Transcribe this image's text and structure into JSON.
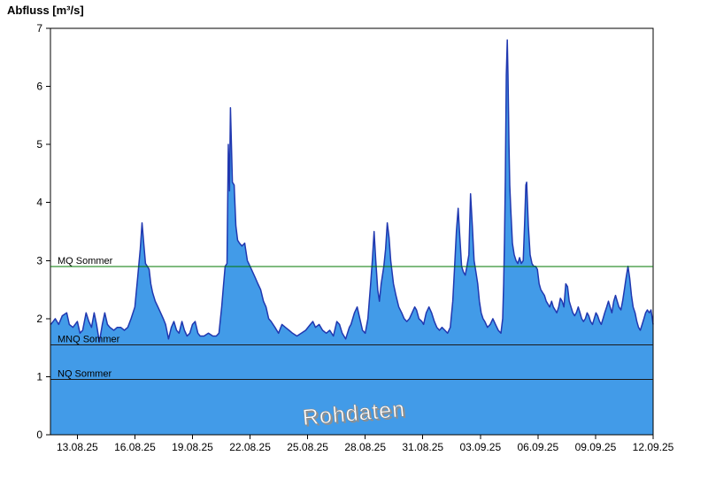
{
  "title": "Abfluss [m³/s]",
  "watermark": {
    "text": "Rohdaten"
  },
  "chart_data": {
    "type": "area",
    "title": "Abfluss [m³/s]",
    "xlabel": "",
    "ylabel": "Abfluss [m³/s]",
    "x_unit": "days since 13.08.25",
    "x_range": [
      -1.4,
      30
    ],
    "y_range": [
      0,
      7
    ],
    "grid": false,
    "legend": "none",
    "y_ticks": [
      0,
      1,
      2,
      3,
      4,
      5,
      6,
      7
    ],
    "x_ticks": [
      {
        "t": 0,
        "label": "13.08.25"
      },
      {
        "t": 3,
        "label": "16.08.25"
      },
      {
        "t": 6,
        "label": "19.08.25"
      },
      {
        "t": 9,
        "label": "22.08.25"
      },
      {
        "t": 12,
        "label": "25.08.25"
      },
      {
        "t": 15,
        "label": "28.08.25"
      },
      {
        "t": 18,
        "label": "31.08.25"
      },
      {
        "t": 21,
        "label": "03.09.25"
      },
      {
        "t": 24,
        "label": "06.09.25"
      },
      {
        "t": 27,
        "label": "09.09.25"
      },
      {
        "t": 30,
        "label": "12.09.25"
      }
    ],
    "colors": {
      "area_fill": "#429be8",
      "line": "#2038b0",
      "axis": "#000000",
      "mq_green": "#007700",
      "ref_dark": "#1a1a1a"
    },
    "ref_lines": [
      {
        "id": "mq-sommer",
        "name": "MQ Sommer",
        "value": 2.9,
        "color": "#007700"
      },
      {
        "id": "mnq-sommer",
        "name": "MNQ Sommer",
        "value": 1.55,
        "color": "#1a1a1a"
      },
      {
        "id": "nq-sommer",
        "name": "NQ Sommer",
        "value": 0.95,
        "color": "#1a1a1a"
      }
    ],
    "series": [
      {
        "name": "Rohdaten",
        "points": [
          [
            -1.38,
            1.9
          ],
          [
            -1.15,
            2.0
          ],
          [
            -0.97,
            1.9
          ],
          [
            -0.78,
            2.05
          ],
          [
            -0.55,
            2.1
          ],
          [
            -0.42,
            1.9
          ],
          [
            -0.23,
            1.85
          ],
          [
            0,
            1.95
          ],
          [
            0.14,
            1.75
          ],
          [
            0.28,
            1.8
          ],
          [
            0.46,
            2.1
          ],
          [
            0.6,
            1.95
          ],
          [
            0.74,
            1.85
          ],
          [
            0.88,
            2.1
          ],
          [
            1.0,
            1.9
          ],
          [
            1.15,
            1.6
          ],
          [
            1.3,
            1.9
          ],
          [
            1.43,
            2.1
          ],
          [
            1.57,
            1.9
          ],
          [
            1.7,
            1.85
          ],
          [
            1.9,
            1.8
          ],
          [
            2.08,
            1.85
          ],
          [
            2.26,
            1.85
          ],
          [
            2.45,
            1.8
          ],
          [
            2.63,
            1.85
          ],
          [
            2.8,
            2.0
          ],
          [
            3.0,
            2.2
          ],
          [
            3.14,
            2.7
          ],
          [
            3.28,
            3.2
          ],
          [
            3.37,
            3.65
          ],
          [
            3.46,
            3.3
          ],
          [
            3.55,
            2.95
          ],
          [
            3.65,
            2.9
          ],
          [
            3.74,
            2.85
          ],
          [
            3.83,
            2.6
          ],
          [
            3.92,
            2.45
          ],
          [
            4.06,
            2.3
          ],
          [
            4.2,
            2.2
          ],
          [
            4.34,
            2.1
          ],
          [
            4.48,
            2.0
          ],
          [
            4.6,
            1.9
          ],
          [
            4.75,
            1.65
          ],
          [
            4.9,
            1.85
          ],
          [
            5.03,
            1.95
          ],
          [
            5.17,
            1.8
          ],
          [
            5.3,
            1.75
          ],
          [
            5.45,
            1.95
          ],
          [
            5.58,
            1.8
          ],
          [
            5.72,
            1.7
          ],
          [
            5.86,
            1.75
          ],
          [
            6.0,
            1.9
          ],
          [
            6.14,
            1.95
          ],
          [
            6.28,
            1.75
          ],
          [
            6.4,
            1.7
          ],
          [
            6.6,
            1.7
          ],
          [
            6.83,
            1.75
          ],
          [
            7.06,
            1.7
          ],
          [
            7.24,
            1.7
          ],
          [
            7.38,
            1.75
          ],
          [
            7.52,
            2.2
          ],
          [
            7.61,
            2.55
          ],
          [
            7.7,
            2.9
          ],
          [
            7.8,
            2.95
          ],
          [
            7.87,
            5.0
          ],
          [
            7.93,
            4.2
          ],
          [
            7.98,
            5.63
          ],
          [
            8.08,
            4.35
          ],
          [
            8.17,
            4.3
          ],
          [
            8.26,
            3.6
          ],
          [
            8.35,
            3.35
          ],
          [
            8.45,
            3.3
          ],
          [
            8.58,
            3.25
          ],
          [
            8.72,
            3.3
          ],
          [
            8.86,
            3.0
          ],
          [
            9.0,
            2.9
          ],
          [
            9.14,
            2.8
          ],
          [
            9.28,
            2.7
          ],
          [
            9.41,
            2.6
          ],
          [
            9.55,
            2.5
          ],
          [
            9.7,
            2.3
          ],
          [
            9.83,
            2.2
          ],
          [
            9.97,
            2.0
          ],
          [
            10.1,
            1.95
          ],
          [
            10.3,
            1.85
          ],
          [
            10.48,
            1.75
          ],
          [
            10.66,
            1.9
          ],
          [
            10.84,
            1.85
          ],
          [
            11.03,
            1.8
          ],
          [
            11.21,
            1.75
          ],
          [
            11.44,
            1.7
          ],
          [
            11.67,
            1.75
          ],
          [
            11.9,
            1.8
          ],
          [
            12.14,
            1.9
          ],
          [
            12.27,
            1.95
          ],
          [
            12.41,
            1.85
          ],
          [
            12.6,
            1.9
          ],
          [
            12.78,
            1.8
          ],
          [
            12.97,
            1.75
          ],
          [
            13.15,
            1.8
          ],
          [
            13.34,
            1.7
          ],
          [
            13.52,
            1.95
          ],
          [
            13.66,
            1.9
          ],
          [
            13.8,
            1.75
          ],
          [
            13.98,
            1.65
          ],
          [
            14.17,
            1.85
          ],
          [
            14.26,
            1.9
          ],
          [
            14.44,
            2.1
          ],
          [
            14.58,
            2.2
          ],
          [
            14.72,
            2.0
          ],
          [
            14.86,
            1.8
          ],
          [
            15.0,
            1.75
          ],
          [
            15.14,
            2.0
          ],
          [
            15.28,
            2.6
          ],
          [
            15.37,
            3.0
          ],
          [
            15.46,
            3.5
          ],
          [
            15.55,
            3.0
          ],
          [
            15.65,
            2.5
          ],
          [
            15.74,
            2.3
          ],
          [
            15.83,
            2.6
          ],
          [
            15.97,
            2.9
          ],
          [
            16.06,
            3.2
          ],
          [
            16.15,
            3.65
          ],
          [
            16.24,
            3.4
          ],
          [
            16.33,
            3.0
          ],
          [
            16.47,
            2.6
          ],
          [
            16.6,
            2.4
          ],
          [
            16.75,
            2.2
          ],
          [
            16.9,
            2.1
          ],
          [
            17.03,
            2.0
          ],
          [
            17.17,
            1.95
          ],
          [
            17.3,
            2.0
          ],
          [
            17.44,
            2.1
          ],
          [
            17.58,
            2.2
          ],
          [
            17.67,
            2.15
          ],
          [
            17.8,
            2.0
          ],
          [
            17.95,
            1.95
          ],
          [
            18.04,
            1.9
          ],
          [
            18.18,
            2.1
          ],
          [
            18.32,
            2.2
          ],
          [
            18.46,
            2.1
          ],
          [
            18.6,
            1.95
          ],
          [
            18.73,
            1.85
          ],
          [
            18.87,
            1.8
          ],
          [
            19.0,
            1.85
          ],
          [
            19.15,
            1.8
          ],
          [
            19.29,
            1.75
          ],
          [
            19.43,
            1.85
          ],
          [
            19.56,
            2.3
          ],
          [
            19.66,
            2.9
          ],
          [
            19.75,
            3.5
          ],
          [
            19.84,
            3.9
          ],
          [
            19.93,
            3.4
          ],
          [
            20.02,
            2.9
          ],
          [
            20.12,
            2.8
          ],
          [
            20.21,
            2.75
          ],
          [
            20.3,
            2.9
          ],
          [
            20.4,
            3.1
          ],
          [
            20.49,
            4.15
          ],
          [
            20.58,
            3.6
          ],
          [
            20.67,
            3.0
          ],
          [
            20.77,
            2.8
          ],
          [
            20.86,
            2.6
          ],
          [
            20.95,
            2.3
          ],
          [
            21.04,
            2.1
          ],
          [
            21.14,
            2.0
          ],
          [
            21.23,
            1.95
          ],
          [
            21.37,
            1.85
          ],
          [
            21.51,
            1.9
          ],
          [
            21.65,
            2.0
          ],
          [
            21.79,
            1.9
          ],
          [
            21.93,
            1.8
          ],
          [
            22.07,
            1.75
          ],
          [
            22.16,
            2.0
          ],
          [
            22.21,
            2.6
          ],
          [
            22.26,
            3.4
          ],
          [
            22.3,
            4.4
          ],
          [
            22.35,
            6.2
          ],
          [
            22.4,
            6.8
          ],
          [
            22.44,
            6.2
          ],
          [
            22.49,
            5.0
          ],
          [
            22.53,
            4.3
          ],
          [
            22.58,
            3.9
          ],
          [
            22.67,
            3.3
          ],
          [
            22.76,
            3.1
          ],
          [
            22.86,
            3.0
          ],
          [
            22.95,
            2.95
          ],
          [
            23.04,
            3.05
          ],
          [
            23.13,
            2.95
          ],
          [
            23.23,
            3.0
          ],
          [
            23.3,
            3.6
          ],
          [
            23.37,
            4.3
          ],
          [
            23.41,
            4.35
          ],
          [
            23.5,
            3.6
          ],
          [
            23.59,
            3.1
          ],
          [
            23.69,
            2.95
          ],
          [
            23.78,
            2.9
          ],
          [
            23.87,
            2.9
          ],
          [
            23.97,
            2.85
          ],
          [
            24.06,
            2.6
          ],
          [
            24.15,
            2.5
          ],
          [
            24.24,
            2.45
          ],
          [
            24.34,
            2.4
          ],
          [
            24.43,
            2.3
          ],
          [
            24.52,
            2.25
          ],
          [
            24.61,
            2.2
          ],
          [
            24.71,
            2.3
          ],
          [
            24.8,
            2.2
          ],
          [
            24.89,
            2.15
          ],
          [
            24.98,
            2.1
          ],
          [
            25.08,
            2.2
          ],
          [
            25.17,
            2.35
          ],
          [
            25.26,
            2.3
          ],
          [
            25.35,
            2.2
          ],
          [
            25.45,
            2.6
          ],
          [
            25.54,
            2.55
          ],
          [
            25.63,
            2.3
          ],
          [
            25.72,
            2.2
          ],
          [
            25.82,
            2.1
          ],
          [
            25.91,
            2.05
          ],
          [
            26.0,
            2.1
          ],
          [
            26.1,
            2.2
          ],
          [
            26.19,
            2.1
          ],
          [
            26.28,
            2.0
          ],
          [
            26.37,
            1.95
          ],
          [
            26.47,
            2.0
          ],
          [
            26.56,
            2.1
          ],
          [
            26.65,
            2.05
          ],
          [
            26.74,
            1.95
          ],
          [
            26.84,
            1.9
          ],
          [
            26.93,
            2.0
          ],
          [
            27.02,
            2.1
          ],
          [
            27.11,
            2.05
          ],
          [
            27.21,
            1.95
          ],
          [
            27.3,
            1.9
          ],
          [
            27.39,
            2.0
          ],
          [
            27.48,
            2.1
          ],
          [
            27.58,
            2.2
          ],
          [
            27.67,
            2.3
          ],
          [
            27.76,
            2.2
          ],
          [
            27.85,
            2.1
          ],
          [
            27.95,
            2.3
          ],
          [
            28.04,
            2.4
          ],
          [
            28.13,
            2.3
          ],
          [
            28.22,
            2.2
          ],
          [
            28.32,
            2.15
          ],
          [
            28.41,
            2.3
          ],
          [
            28.5,
            2.5
          ],
          [
            28.59,
            2.7
          ],
          [
            28.69,
            2.9
          ],
          [
            28.78,
            2.7
          ],
          [
            28.87,
            2.4
          ],
          [
            28.96,
            2.2
          ],
          [
            29.06,
            2.1
          ],
          [
            29.15,
            1.95
          ],
          [
            29.24,
            1.85
          ],
          [
            29.33,
            1.8
          ],
          [
            29.43,
            1.9
          ],
          [
            29.52,
            2.0
          ],
          [
            29.61,
            2.1
          ],
          [
            29.7,
            2.15
          ],
          [
            29.8,
            2.1
          ],
          [
            29.89,
            2.15
          ],
          [
            30.0,
            1.9
          ]
        ]
      }
    ]
  }
}
